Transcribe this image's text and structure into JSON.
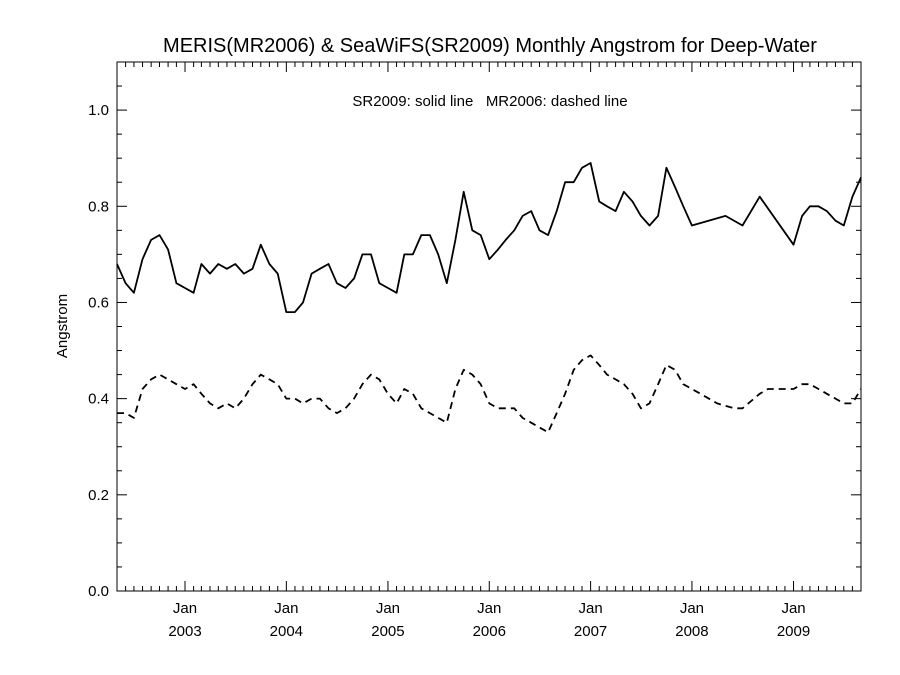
{
  "chart_data": {
    "type": "line",
    "title": "MERIS(MR2006) & SeaWiFS(SR2009) Monthly Angstrom for Deep-Water",
    "ylabel": "Angstrom",
    "xlabel": "",
    "annotation": "SR2009: solid line   MR2006: dashed line",
    "xlim": [
      "2002-05-01",
      "2009-09-01"
    ],
    "ylim": [
      0.0,
      1.1
    ],
    "yticks": [
      "0.0",
      "0.2",
      "0.4",
      "0.6",
      "0.8",
      "1.0"
    ],
    "xticks": [
      {
        "month": "Jan",
        "year": "2003",
        "date": "2003-01-01"
      },
      {
        "month": "Jan",
        "year": "2004",
        "date": "2004-01-01"
      },
      {
        "month": "Jan",
        "year": "2005",
        "date": "2005-01-01"
      },
      {
        "month": "Jan",
        "year": "2006",
        "date": "2006-01-01"
      },
      {
        "month": "Jan",
        "year": "2007",
        "date": "2007-01-01"
      },
      {
        "month": "Jan",
        "year": "2008",
        "date": "2008-01-01"
      },
      {
        "month": "Jan",
        "year": "2009",
        "date": "2009-01-01"
      }
    ],
    "series": [
      {
        "style": "solid",
        "points": [
          [
            "2002-05",
            0.68
          ],
          [
            "2002-06",
            0.64
          ],
          [
            "2002-07",
            0.62
          ],
          [
            "2002-08",
            0.69
          ],
          [
            "2002-09",
            0.73
          ],
          [
            "2002-10",
            0.74
          ],
          [
            "2002-11",
            0.71
          ],
          [
            "2002-12",
            0.64
          ],
          [
            "2003-01",
            0.63
          ],
          [
            "2003-02",
            0.62
          ],
          [
            "2003-03",
            0.68
          ],
          [
            "2003-04",
            0.66
          ],
          [
            "2003-05",
            0.68
          ],
          [
            "2003-06",
            0.67
          ],
          [
            "2003-07",
            0.68
          ],
          [
            "2003-08",
            0.66
          ],
          [
            "2003-09",
            0.67
          ],
          [
            "2003-10",
            0.72
          ],
          [
            "2003-11",
            0.68
          ],
          [
            "2003-12",
            0.66
          ],
          [
            "2004-01",
            0.58
          ],
          [
            "2004-02",
            0.58
          ],
          [
            "2004-03",
            0.6
          ],
          [
            "2004-04",
            0.66
          ],
          [
            "2004-05",
            0.67
          ],
          [
            "2004-06",
            0.68
          ],
          [
            "2004-07",
            0.64
          ],
          [
            "2004-08",
            0.63
          ],
          [
            "2004-09",
            0.65
          ],
          [
            "2004-10",
            0.7
          ],
          [
            "2004-11",
            0.7
          ],
          [
            "2004-12",
            0.64
          ],
          [
            "2005-01",
            0.63
          ],
          [
            "2005-02",
            0.62
          ],
          [
            "2005-03",
            0.7
          ],
          [
            "2005-04",
            0.7
          ],
          [
            "2005-05",
            0.74
          ],
          [
            "2005-06",
            0.74
          ],
          [
            "2005-07",
            0.7
          ],
          [
            "2005-08",
            0.64
          ],
          [
            "2005-09",
            0.73
          ],
          [
            "2005-10",
            0.83
          ],
          [
            "2005-11",
            0.75
          ],
          [
            "2005-12",
            0.74
          ],
          [
            "2006-01",
            0.69
          ],
          [
            "2006-02",
            0.71
          ],
          [
            "2006-03",
            0.73
          ],
          [
            "2006-04",
            0.75
          ],
          [
            "2006-05",
            0.78
          ],
          [
            "2006-06",
            0.79
          ],
          [
            "2006-07",
            0.75
          ],
          [
            "2006-08",
            0.74
          ],
          [
            "2006-09",
            0.79
          ],
          [
            "2006-10",
            0.85
          ],
          [
            "2006-11",
            0.85
          ],
          [
            "2006-12",
            0.88
          ],
          [
            "2007-01",
            0.89
          ],
          [
            "2007-02",
            0.81
          ],
          [
            "2007-03",
            0.8
          ],
          [
            "2007-04",
            0.79
          ],
          [
            "2007-05",
            0.83
          ],
          [
            "2007-06",
            0.81
          ],
          [
            "2007-07",
            0.78
          ],
          [
            "2007-08",
            0.76
          ],
          [
            "2007-09",
            0.78
          ],
          [
            "2007-10",
            0.88
          ],
          [
            "2007-11",
            0.84
          ],
          [
            "2007-12",
            0.8
          ],
          [
            "2008-01",
            0.76
          ],
          [
            "2008-05",
            0.78
          ],
          [
            "2008-07",
            0.76
          ],
          [
            "2008-09",
            0.82
          ],
          [
            "2009-01",
            0.72
          ],
          [
            "2009-02",
            0.78
          ],
          [
            "2009-03",
            0.8
          ],
          [
            "2009-04",
            0.8
          ],
          [
            "2009-05",
            0.79
          ],
          [
            "2009-06",
            0.77
          ],
          [
            "2009-07",
            0.76
          ],
          [
            "2009-08",
            0.82
          ],
          [
            "2009-09",
            0.86
          ]
        ]
      },
      {
        "style": "dashed",
        "points": [
          [
            "2002-05",
            0.37
          ],
          [
            "2002-06",
            0.37
          ],
          [
            "2002-07",
            0.36
          ],
          [
            "2002-08",
            0.42
          ],
          [
            "2002-09",
            0.44
          ],
          [
            "2002-10",
            0.45
          ],
          [
            "2002-11",
            0.44
          ],
          [
            "2002-12",
            0.43
          ],
          [
            "2003-01",
            0.42
          ],
          [
            "2003-02",
            0.43
          ],
          [
            "2003-03",
            0.41
          ],
          [
            "2003-04",
            0.39
          ],
          [
            "2003-05",
            0.38
          ],
          [
            "2003-06",
            0.39
          ],
          [
            "2003-07",
            0.38
          ],
          [
            "2003-08",
            0.4
          ],
          [
            "2003-09",
            0.43
          ],
          [
            "2003-10",
            0.45
          ],
          [
            "2003-11",
            0.44
          ],
          [
            "2003-12",
            0.43
          ],
          [
            "2004-01",
            0.4
          ],
          [
            "2004-02",
            0.4
          ],
          [
            "2004-03",
            0.39
          ],
          [
            "2004-04",
            0.4
          ],
          [
            "2004-05",
            0.4
          ],
          [
            "2004-06",
            0.38
          ],
          [
            "2004-07",
            0.37
          ],
          [
            "2004-08",
            0.38
          ],
          [
            "2004-09",
            0.4
          ],
          [
            "2004-10",
            0.43
          ],
          [
            "2004-11",
            0.45
          ],
          [
            "2004-12",
            0.44
          ],
          [
            "2005-01",
            0.41
          ],
          [
            "2005-02",
            0.39
          ],
          [
            "2005-03",
            0.42
          ],
          [
            "2005-04",
            0.41
          ],
          [
            "2005-05",
            0.38
          ],
          [
            "2005-06",
            0.37
          ],
          [
            "2005-07",
            0.36
          ],
          [
            "2005-08",
            0.35
          ],
          [
            "2005-09",
            0.42
          ],
          [
            "2005-10",
            0.46
          ],
          [
            "2005-11",
            0.45
          ],
          [
            "2005-12",
            0.43
          ],
          [
            "2006-01",
            0.39
          ],
          [
            "2006-02",
            0.38
          ],
          [
            "2006-03",
            0.38
          ],
          [
            "2006-04",
            0.38
          ],
          [
            "2006-05",
            0.36
          ],
          [
            "2006-06",
            0.35
          ],
          [
            "2006-07",
            0.34
          ],
          [
            "2006-08",
            0.33
          ],
          [
            "2006-09",
            0.37
          ],
          [
            "2006-10",
            0.41
          ],
          [
            "2006-11",
            0.46
          ],
          [
            "2006-12",
            0.48
          ],
          [
            "2007-01",
            0.49
          ],
          [
            "2007-02",
            0.47
          ],
          [
            "2007-03",
            0.45
          ],
          [
            "2007-04",
            0.44
          ],
          [
            "2007-05",
            0.43
          ],
          [
            "2007-06",
            0.41
          ],
          [
            "2007-07",
            0.38
          ],
          [
            "2007-08",
            0.39
          ],
          [
            "2007-09",
            0.43
          ],
          [
            "2007-10",
            0.47
          ],
          [
            "2007-11",
            0.46
          ],
          [
            "2007-12",
            0.43
          ],
          [
            "2008-02",
            0.41
          ],
          [
            "2008-04",
            0.39
          ],
          [
            "2008-06",
            0.38
          ],
          [
            "2008-07",
            0.38
          ],
          [
            "2008-09",
            0.41
          ],
          [
            "2008-10",
            0.42
          ],
          [
            "2008-12",
            0.42
          ],
          [
            "2009-01",
            0.42
          ],
          [
            "2009-02",
            0.43
          ],
          [
            "2009-03",
            0.43
          ],
          [
            "2009-04",
            0.42
          ],
          [
            "2009-05",
            0.41
          ],
          [
            "2009-06",
            0.4
          ],
          [
            "2009-07",
            0.39
          ],
          [
            "2009-08",
            0.39
          ],
          [
            "2009-09",
            0.42
          ]
        ]
      }
    ]
  }
}
